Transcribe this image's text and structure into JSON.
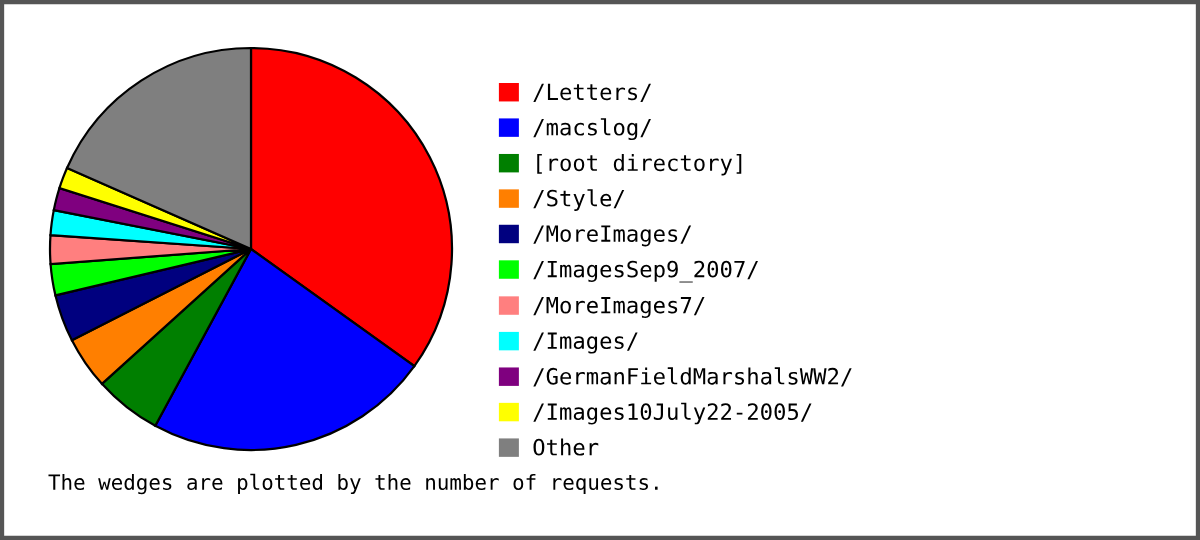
{
  "chart_data": {
    "type": "pie",
    "categories": [
      "/Letters/",
      "/macslog/",
      "[root directory]",
      "/Style/",
      "/MoreImages/",
      "/ImagesSep9_2007/",
      "/MoreImages7/",
      "/Images/",
      "/GermanFieldMarshalsWW2/",
      "/Images10July22-2005/",
      "Other"
    ],
    "values": [
      34.9,
      23.0,
      5.4,
      4.2,
      3.8,
      2.5,
      2.3,
      2.0,
      1.8,
      1.7,
      18.4
    ],
    "colors": [
      "#ff0000",
      "#0000ff",
      "#007f00",
      "#ff7f00",
      "#00007f",
      "#00ff00",
      "#ff7f7f",
      "#00ffff",
      "#7f007f",
      "#ffff00",
      "#7f7f7f"
    ],
    "legend": "right",
    "annotations": [
      "The wedges are plotted by the number of requests."
    ]
  }
}
